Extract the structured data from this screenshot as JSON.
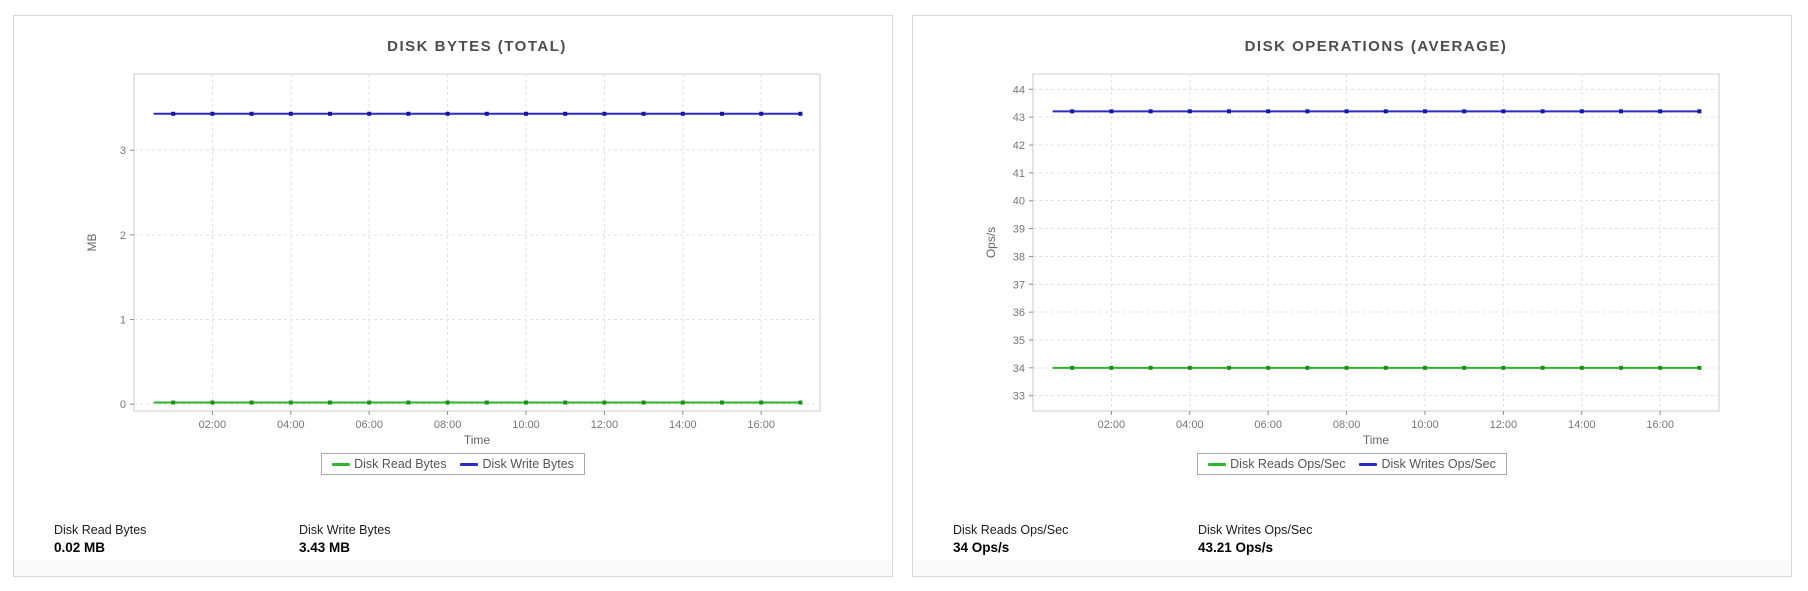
{
  "panels": [
    {
      "title": "DISK BYTES (TOTAL)",
      "stats": [
        {
          "label": "Disk Read Bytes",
          "value": "0.02 MB"
        },
        {
          "label": "Disk Write Bytes",
          "value": "3.43 MB"
        }
      ]
    },
    {
      "title": "DISK OPERATIONS (AVERAGE)",
      "stats": [
        {
          "label": "Disk Reads Ops/Sec",
          "value": "34 Ops/s"
        },
        {
          "label": "Disk Writes Ops/Sec",
          "value": "43.21 Ops/s"
        }
      ]
    }
  ],
  "chart_data": [
    {
      "type": "line",
      "title": "DISK BYTES (TOTAL)",
      "xlabel": "Time",
      "ylabel": "MB",
      "x_tick_labels": [
        "02:00",
        "04:00",
        "06:00",
        "08:00",
        "10:00",
        "12:00",
        "14:00",
        "16:00"
      ],
      "x_tick_hours": [
        2,
        4,
        6,
        8,
        10,
        12,
        14,
        16
      ],
      "x_axis_range_hours": [
        0,
        17.5
      ],
      "x_data_range_hours": [
        0.5,
        17
      ],
      "point_interval_hours": 0.5,
      "y_ticks": [
        0,
        1,
        2,
        3
      ],
      "ylim": [
        -0.08,
        3.9
      ],
      "grid": "dashed",
      "legend_position": "bottom",
      "series": [
        {
          "name": "Disk Read Bytes",
          "color": "#2db52d",
          "marker_color": "#1d8f1d",
          "constant_value": 0.02
        },
        {
          "name": "Disk Write Bytes",
          "color": "#2b2bc4",
          "marker_color": "#16169e",
          "constant_value": 3.43
        }
      ]
    },
    {
      "type": "line",
      "title": "DISK OPERATIONS (AVERAGE)",
      "xlabel": "Time",
      "ylabel": "Ops/s",
      "x_tick_labels": [
        "02:00",
        "04:00",
        "06:00",
        "08:00",
        "10:00",
        "12:00",
        "14:00",
        "16:00"
      ],
      "x_tick_hours": [
        2,
        4,
        6,
        8,
        10,
        12,
        14,
        16
      ],
      "x_axis_range_hours": [
        0,
        17.5
      ],
      "x_data_range_hours": [
        0.5,
        17
      ],
      "point_interval_hours": 0.5,
      "y_ticks": [
        33,
        34,
        35,
        36,
        37,
        38,
        39,
        40,
        41,
        42,
        43,
        44
      ],
      "ylim": [
        32.45,
        44.55
      ],
      "grid": "dashed",
      "legend_position": "bottom",
      "series": [
        {
          "name": "Disk Reads Ops/Sec",
          "color": "#2db52d",
          "marker_color": "#1d8f1d",
          "constant_value": 34
        },
        {
          "name": "Disk Writes Ops/Sec",
          "color": "#2b2bc4",
          "marker_color": "#16169e",
          "constant_value": 43.21
        }
      ]
    }
  ]
}
